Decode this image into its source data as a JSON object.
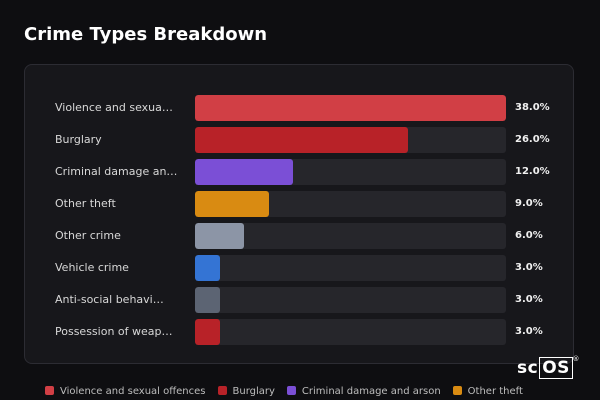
{
  "chart_data": {
    "type": "bar",
    "orientation": "horizontal",
    "title": "Crime Types Breakdown",
    "xlabel": "",
    "ylabel": "",
    "xlim": [
      0,
      38
    ],
    "categories": [
      "Violence and sexua…",
      "Burglary",
      "Criminal damage an…",
      "Other theft",
      "Other crime",
      "Vehicle crime",
      "Anti-social behavi…",
      "Possession of weap…"
    ],
    "values": [
      38.0,
      26.0,
      12.0,
      9.0,
      6.0,
      3.0,
      3.0,
      3.0
    ],
    "value_labels": [
      "38.0%",
      "26.0%",
      "12.0%",
      "9.0%",
      "6.0%",
      "3.0%",
      "3.0%",
      "3.0%"
    ],
    "colors": [
      "#d13f45",
      "#b82228",
      "#7b4fd6",
      "#d98b12",
      "#8c95a6",
      "#3474d4",
      "#5c6473",
      "#b82228"
    ],
    "legend": [
      {
        "label": "Violence and sexual offences",
        "color": "#d13f45"
      },
      {
        "label": "Burglary",
        "color": "#b82228"
      },
      {
        "label": "Criminal damage and arson",
        "color": "#7b4fd6"
      },
      {
        "label": "Other theft",
        "color": "#d98b12"
      }
    ],
    "legend_position": "bottom",
    "grid": false
  },
  "watermark": {
    "text_a": "sc",
    "text_b": "OS",
    "mark": "®"
  }
}
